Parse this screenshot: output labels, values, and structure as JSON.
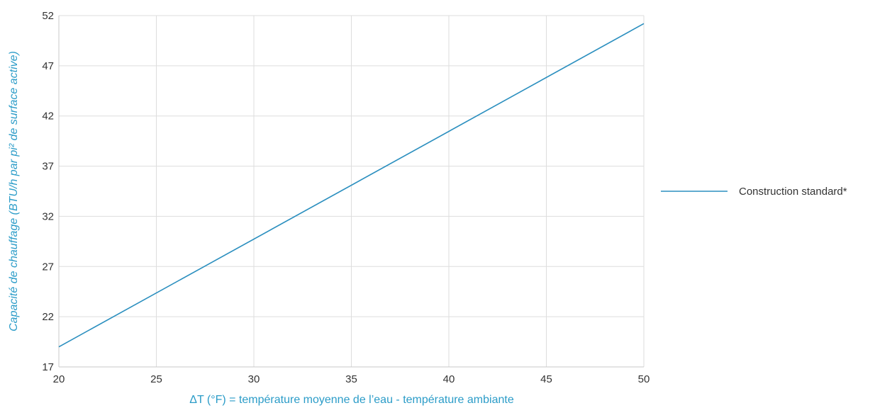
{
  "chart_data": {
    "type": "line",
    "xlabel": "ΔT (°F) = température moyenne de l’eau - température ambiante",
    "ylabel": "Capacité de chauffage (BTU/h par pi² de surface active)",
    "xlim": [
      20,
      50
    ],
    "ylim": [
      17,
      52
    ],
    "xticks": [
      20,
      25,
      30,
      35,
      40,
      45,
      50
    ],
    "yticks": [
      17,
      22,
      27,
      32,
      37,
      42,
      47,
      52
    ],
    "grid": true,
    "legend_position": "right",
    "series": [
      {
        "name": "Construction standard*",
        "color": "#2b8fbf",
        "x": [
          20,
          50
        ],
        "y": [
          19,
          51.2
        ]
      }
    ]
  },
  "colors": {
    "axis_title": "#2b9cc8",
    "grid": "#dddddd",
    "axis": "#c8c8c8",
    "tick_text": "#333333"
  }
}
